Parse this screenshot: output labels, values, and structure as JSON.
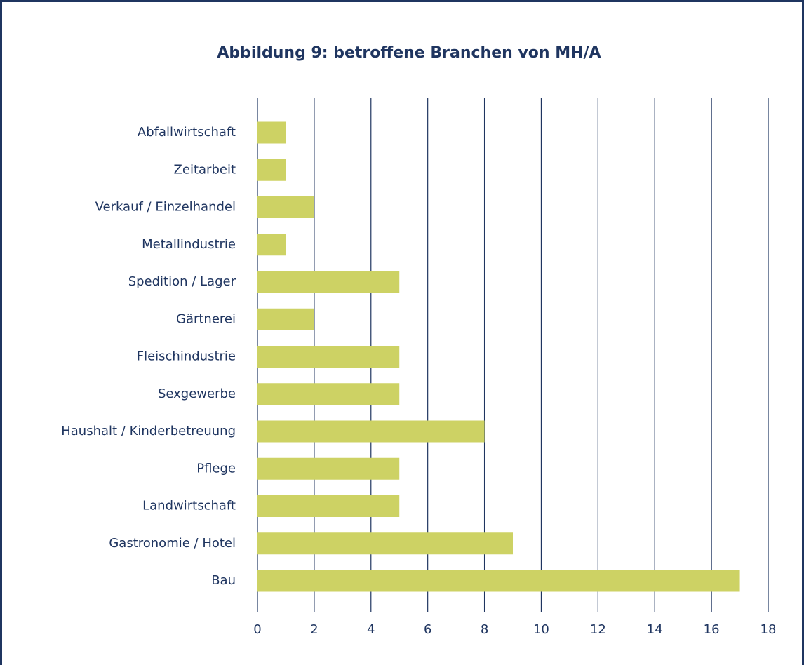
{
  "chart_data": {
    "type": "bar",
    "orientation": "horizontal",
    "title": "Abbildung 9: betroffene Branchen von MH/A",
    "categories": [
      "Abfallwirtschaft",
      "Zeitarbeit",
      "Verkauf / Einzelhandel",
      "Metallindustrie",
      "Spedition / Lager",
      "Gärtnerei",
      "Fleischindustrie",
      "Sexgewerbe",
      "Haushalt / Kinderbetreuung",
      "Pflege",
      "Landwirtschaft",
      "Gastronomie / Hotel",
      "Bau"
    ],
    "values": [
      1,
      1,
      2,
      1,
      5,
      2,
      5,
      5,
      8,
      5,
      5,
      9,
      17
    ],
    "color": "#cdd264",
    "xlim": [
      0,
      18
    ],
    "xticks": [
      0,
      2,
      4,
      6,
      8,
      10,
      12,
      14,
      16,
      18
    ],
    "grid": true
  }
}
